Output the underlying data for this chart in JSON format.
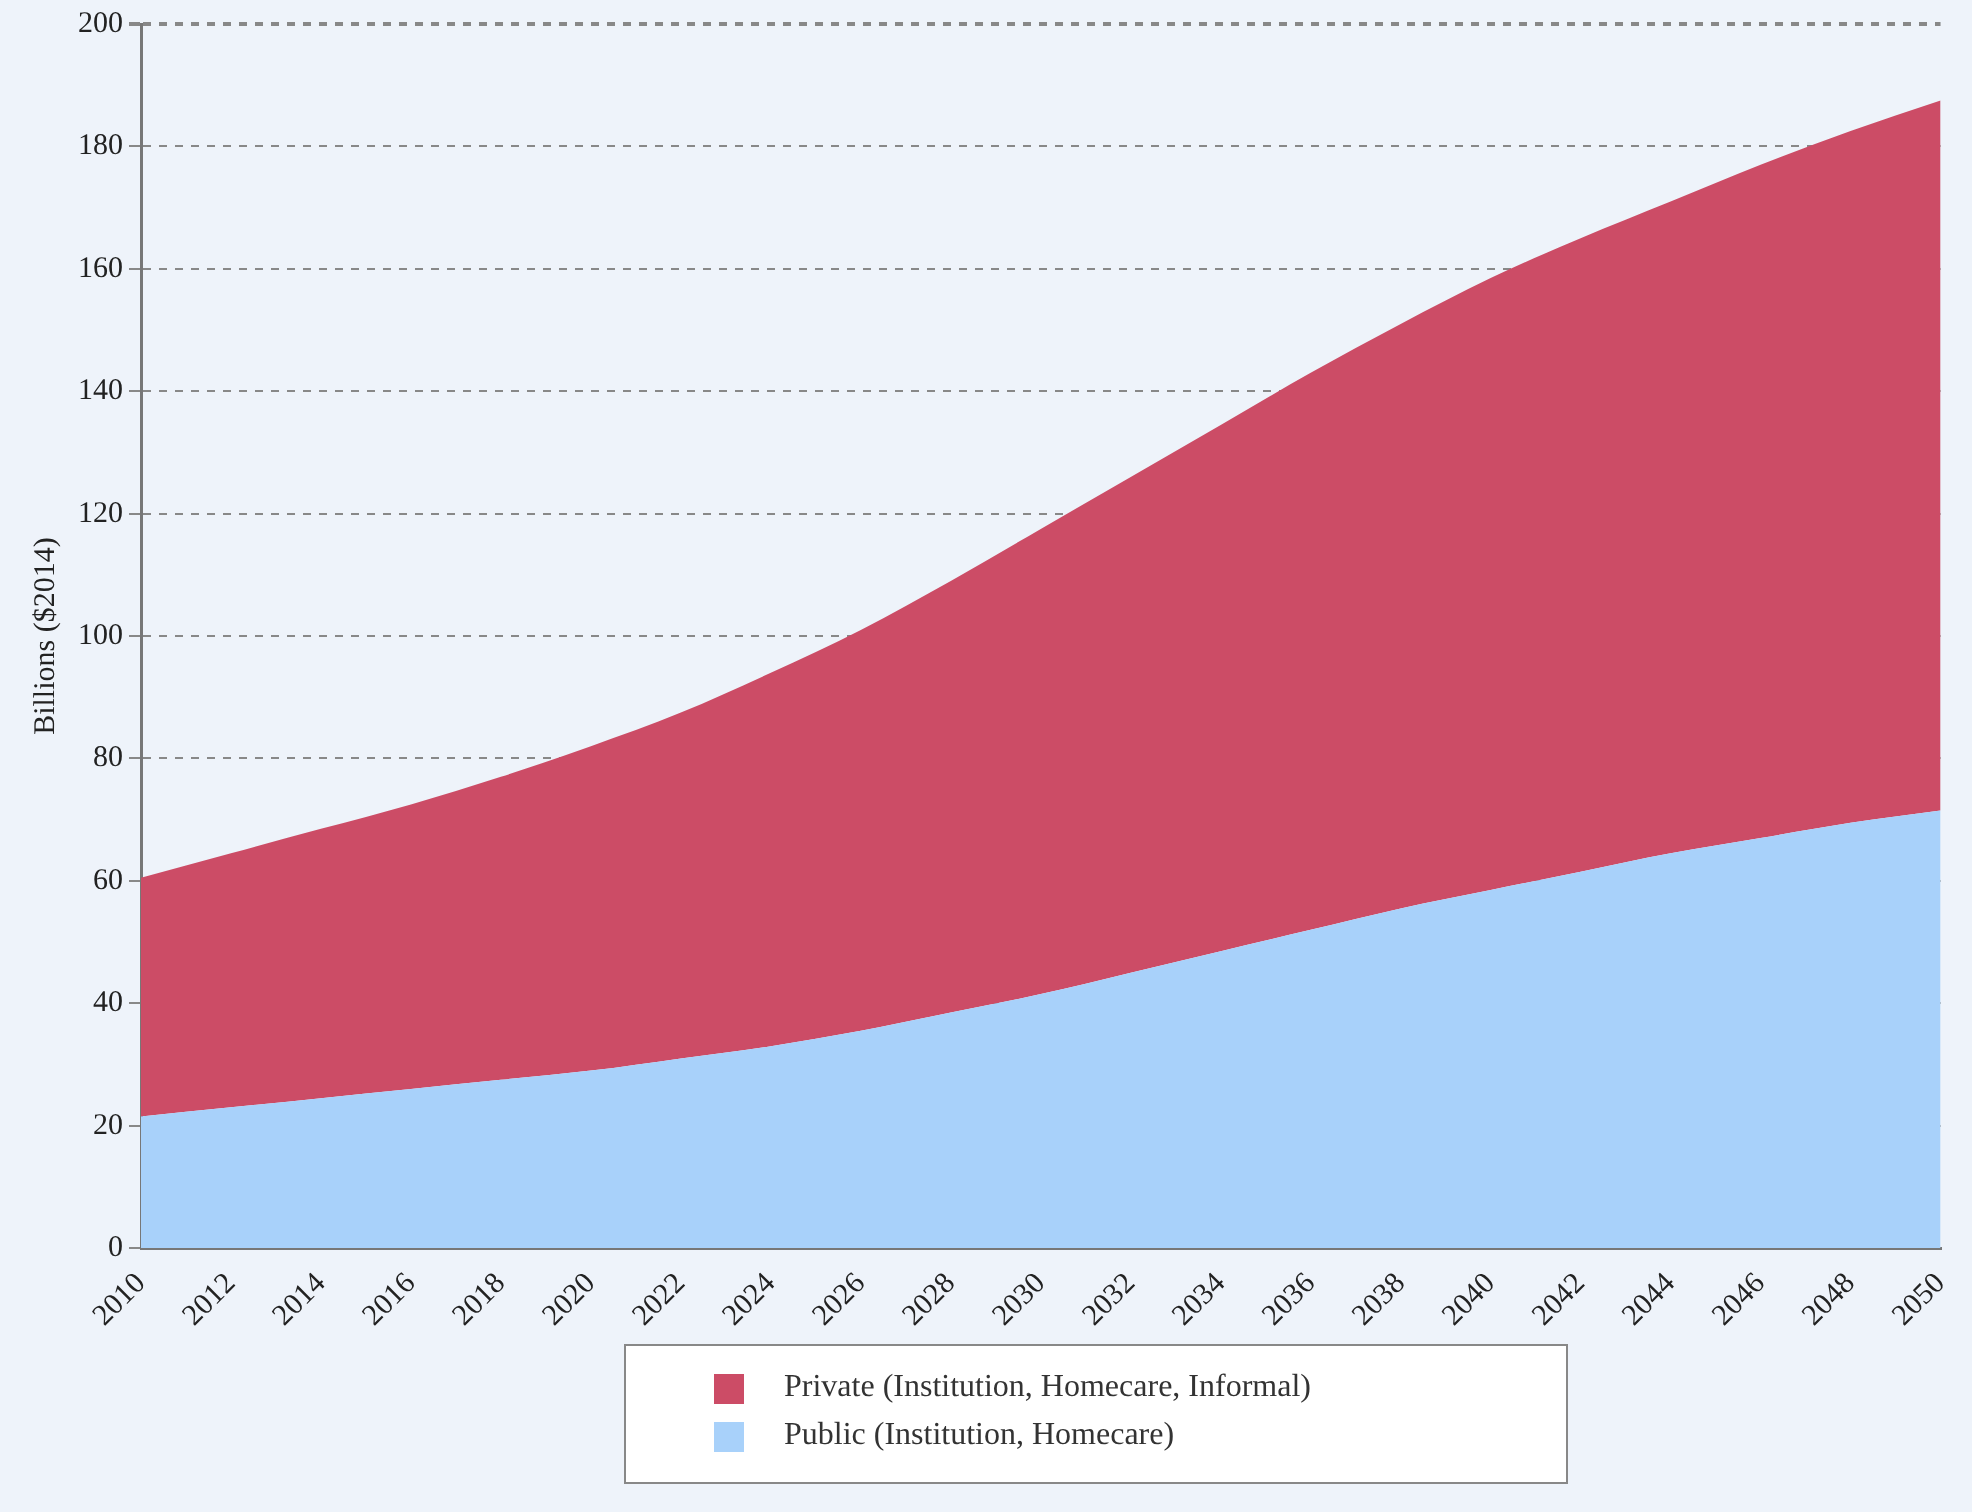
{
  "chart_data": {
    "type": "area",
    "ylabel": "Billions ($2014)",
    "stacked": true,
    "legend": "bottom",
    "grid": "y",
    "line_style": "dashed",
    "x": [
      2010,
      2012,
      2014,
      2016,
      2018,
      2020,
      2022,
      2024,
      2026,
      2028,
      2030,
      2032,
      2034,
      2036,
      2038,
      2040,
      2042,
      2044,
      2046,
      2048,
      2050
    ],
    "xlim": [
      2010,
      2050
    ],
    "xticks": [
      2010,
      2012,
      2014,
      2016,
      2018,
      2020,
      2022,
      2024,
      2026,
      2028,
      2030,
      2032,
      2034,
      2036,
      2038,
      2040,
      2042,
      2044,
      2046,
      2048,
      2050
    ],
    "ylim": [
      0,
      200
    ],
    "yticks": [
      0,
      20,
      40,
      60,
      80,
      100,
      120,
      140,
      160,
      180,
      200
    ],
    "series": [
      {
        "name": "Public (Institution, Homecare)",
        "color": "#a8d1fa",
        "values": [
          21.5,
          23,
          24.5,
          26,
          27.5,
          29,
          31,
          33,
          35.5,
          38.5,
          41.5,
          45,
          48.5,
          52,
          55.5,
          58.5,
          61.5,
          64.5,
          67,
          69.5,
          71.5
        ]
      },
      {
        "name": "Private (Institution, Homecare, Informal)",
        "color": "#cc4c66",
        "values": [
          39,
          41.5,
          44,
          46.5,
          49.5,
          53,
          56.5,
          61,
          65.5,
          70.5,
          76,
          81,
          86,
          91,
          95.5,
          100,
          103.5,
          106.5,
          110,
          113,
          116
        ]
      }
    ]
  }
}
